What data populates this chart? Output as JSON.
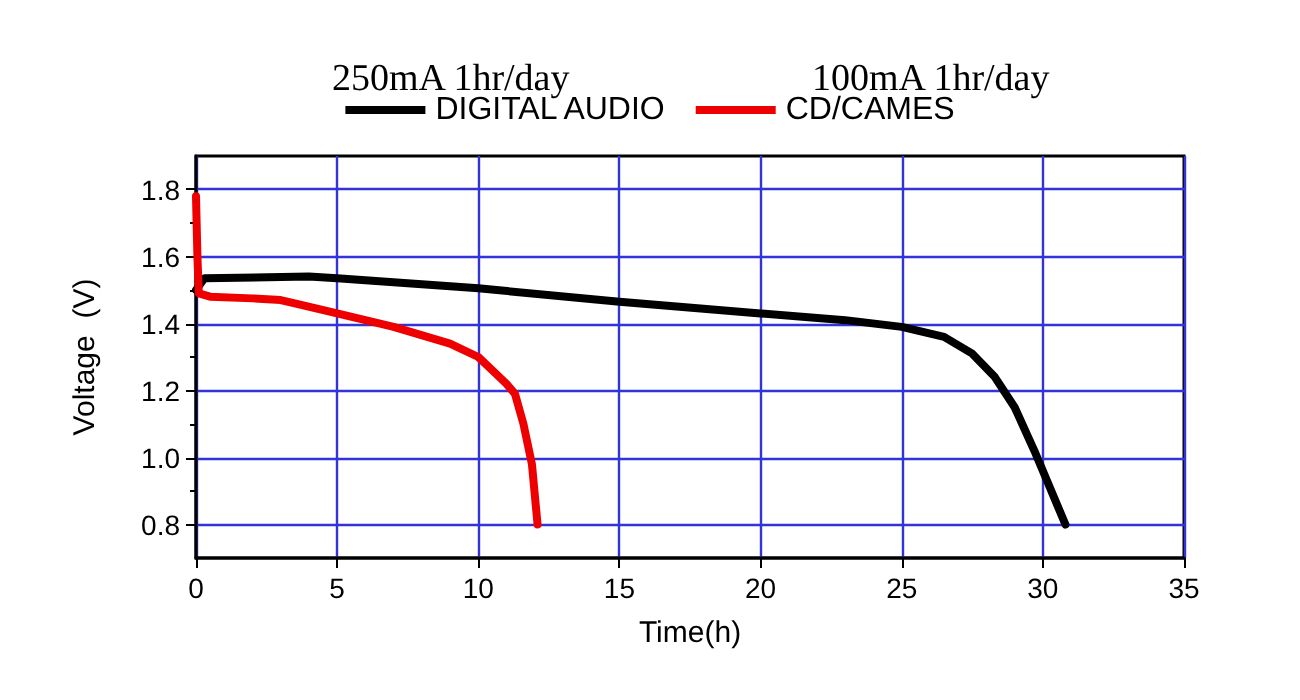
{
  "chart_data": {
    "type": "line",
    "xlabel": "Time(h)",
    "ylabel": "Voltage  (V)",
    "annotations": [
      "250mA 1hr/day",
      "100mA 1hr/day"
    ],
    "series": [
      {
        "name": "DIGITAL AUDIO",
        "color": "#000000",
        "x": [
          0,
          0.3,
          4,
          5,
          10,
          15,
          20,
          23,
          25,
          26.5,
          27.5,
          28.3,
          29,
          29.7,
          30.2,
          30.8
        ],
        "values": [
          1.5,
          1.535,
          1.54,
          1.535,
          1.505,
          1.465,
          1.43,
          1.41,
          1.39,
          1.36,
          1.31,
          1.24,
          1.15,
          1.02,
          0.92,
          0.8
        ]
      },
      {
        "name": "CD/CAMES",
        "color": "#ee0000",
        "x": [
          0,
          0.05,
          0.1,
          0.5,
          2,
          3,
          3.5,
          5,
          7,
          9,
          10,
          10.5,
          11,
          11.3,
          11.6,
          11.9,
          12.1
        ],
        "values": [
          1.78,
          1.6,
          1.49,
          1.48,
          1.475,
          1.47,
          1.46,
          1.43,
          1.39,
          1.34,
          1.3,
          1.26,
          1.22,
          1.19,
          1.1,
          0.98,
          0.8
        ]
      }
    ],
    "xlim": [
      0,
      35
    ],
    "xticks": [
      0,
      5,
      10,
      15,
      20,
      25,
      30,
      35
    ],
    "ylim": [
      0.7,
      1.9
    ],
    "yticks": [
      0.8,
      {
        "value": 1,
        "label": "1.0"
      },
      1.2,
      1.4,
      1.6,
      1.8
    ],
    "grid": true,
    "legend": "top",
    "marker": "none",
    "line_style": "solid"
  }
}
